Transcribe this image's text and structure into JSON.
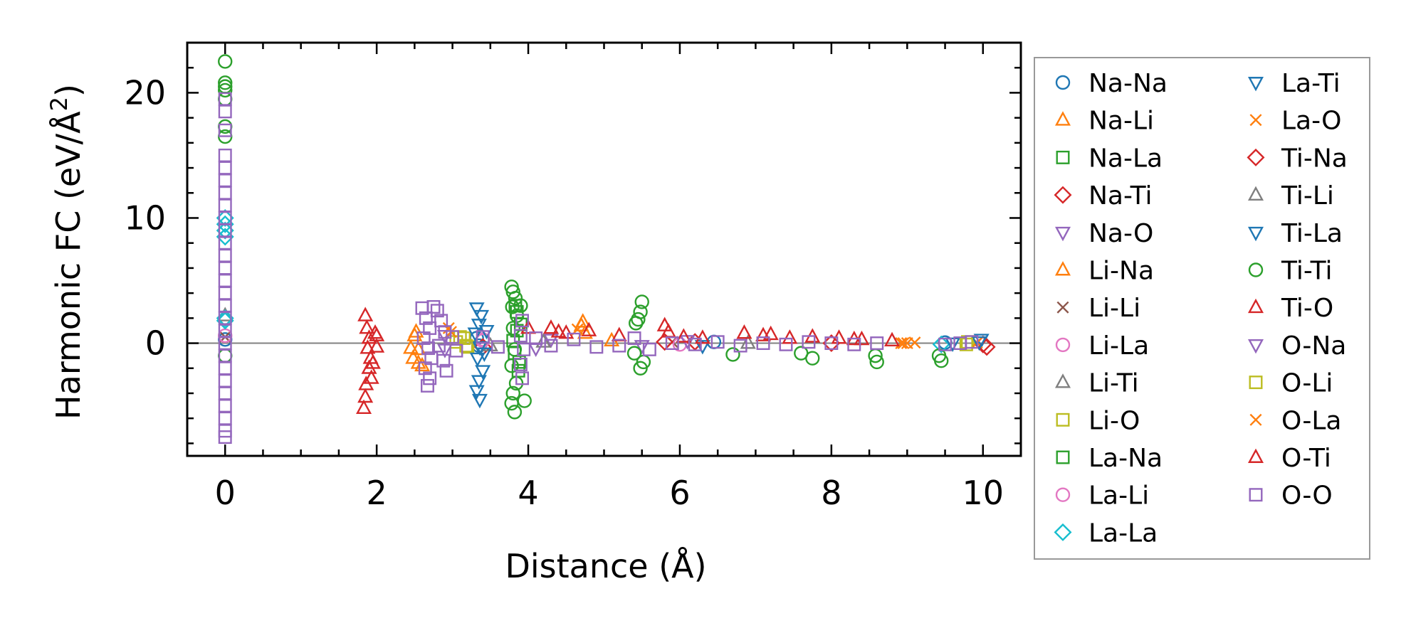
{
  "chart_data": {
    "type": "scatter",
    "title": "",
    "xlabel": "Distance (Å)",
    "ylabel_main": "Harmonic FC (eV/Å",
    "ylabel_sup": "2",
    "ylabel_close": ")",
    "xlim": [
      -0.5,
      10.5
    ],
    "ylim": [
      -9.0,
      24.0
    ],
    "xticks": [
      0,
      2,
      4,
      6,
      8,
      10
    ],
    "xtick_labels": [
      "0",
      "2",
      "4",
      "6",
      "8",
      "10"
    ],
    "yticks": [
      0,
      10,
      20
    ],
    "ytick_labels": [
      "0",
      "10",
      "20"
    ],
    "reference_line_y": 0,
    "legend_position": "outside-right",
    "colors": {
      "blue": "#1f77b4",
      "orange": "#ff7f0e",
      "green": "#2ca02c",
      "red": "#d62728",
      "purple": "#9467bd",
      "brown": "#8c564b",
      "pink": "#e377c2",
      "gray": "#7f7f7f",
      "olive": "#bcbd22",
      "cyan": "#17becf",
      "zero_line": "#808080"
    },
    "series": [
      {
        "name": "Na-Na",
        "marker": "circle",
        "color": "blue",
        "points": [
          [
            0.0,
            0.3
          ],
          [
            3.32,
            0.4
          ],
          [
            3.35,
            -0.2
          ],
          [
            6.45,
            0.1
          ],
          [
            9.5,
            0.05
          ]
        ]
      },
      {
        "name": "Na-Li",
        "marker": "triangle-up",
        "color": "orange",
        "points": [
          [
            2.5,
            0.6
          ],
          [
            2.55,
            -0.5
          ],
          [
            2.6,
            -1.8
          ],
          [
            2.48,
            -1.2
          ],
          [
            2.52,
            0.9
          ],
          [
            5.1,
            0.2
          ]
        ]
      },
      {
        "name": "Na-La",
        "marker": "square",
        "color": "green",
        "points": [
          [
            3.85,
            2.5
          ],
          [
            3.82,
            -0.8
          ],
          [
            3.88,
            -1.5
          ],
          [
            3.9,
            1.5
          ],
          [
            3.8,
            0.2
          ]
        ]
      },
      {
        "name": "Na-Ti",
        "marker": "diamond",
        "color": "red",
        "points": [
          [
            3.4,
            -0.3
          ],
          [
            6.2,
            0.1
          ],
          [
            10.0,
            -0.1
          ]
        ]
      },
      {
        "name": "Na-O",
        "marker": "triangle-down",
        "color": "purple",
        "points": [
          [
            2.9,
            -0.5
          ],
          [
            4.3,
            0.3
          ],
          [
            5.5,
            -0.2
          ]
        ]
      },
      {
        "name": "Li-Na",
        "marker": "triangle-up",
        "color": "orange",
        "points": [
          [
            2.45,
            -0.4
          ],
          [
            2.55,
            -1.6
          ],
          [
            4.7,
            1.4
          ],
          [
            4.75,
            0.8
          ],
          [
            4.72,
            1.7
          ]
        ]
      },
      {
        "name": "Li-Li",
        "marker": "x",
        "color": "brown",
        "points": [
          [
            0.0,
            0.5
          ],
          [
            5.9,
            0.1
          ]
        ]
      },
      {
        "name": "Li-La",
        "marker": "circle",
        "color": "pink",
        "points": [
          [
            0.0,
            0.6
          ],
          [
            3.4,
            0.3
          ]
        ]
      },
      {
        "name": "Li-Ti",
        "marker": "triangle-up",
        "color": "gray",
        "points": [
          [
            0.0,
            2.2
          ],
          [
            3.5,
            -0.2
          ]
        ]
      },
      {
        "name": "Li-O",
        "marker": "square",
        "color": "olive",
        "points": [
          [
            3.05,
            0.1
          ],
          [
            3.2,
            -0.3
          ],
          [
            3.15,
            0.4
          ],
          [
            9.8,
            0.1
          ]
        ]
      },
      {
        "name": "La-Na",
        "marker": "square",
        "color": "green",
        "points": [
          [
            3.87,
            -2.2
          ],
          [
            3.83,
            3.0
          ],
          [
            3.85,
            1.0
          ]
        ]
      },
      {
        "name": "La-Li",
        "marker": "circle",
        "color": "pink",
        "points": [
          [
            3.4,
            0.2
          ],
          [
            6.0,
            -0.1
          ]
        ]
      },
      {
        "name": "La-La",
        "marker": "diamond",
        "color": "cyan",
        "points": [
          [
            0.0,
            10.0
          ],
          [
            0.0,
            9.5
          ],
          [
            0.0,
            9.0
          ],
          [
            0.0,
            8.5
          ],
          [
            0.0,
            2.0
          ],
          [
            0.0,
            1.8
          ],
          [
            9.45,
            -0.1
          ]
        ]
      },
      {
        "name": "La-Ti",
        "marker": "triangle-down",
        "color": "blue",
        "points": [
          [
            3.32,
            2.8
          ],
          [
            3.38,
            2.2
          ],
          [
            3.35,
            1.5
          ],
          [
            3.3,
            0.8
          ],
          [
            3.36,
            -0.3
          ],
          [
            3.33,
            -1.2
          ],
          [
            3.4,
            -2.2
          ],
          [
            3.35,
            -3.0
          ],
          [
            3.32,
            -3.8
          ],
          [
            3.36,
            -4.5
          ],
          [
            6.3,
            -0.2
          ],
          [
            9.98,
            0.3
          ]
        ]
      },
      {
        "name": "La-O",
        "marker": "x",
        "color": "orange",
        "points": [
          [
            2.95,
            1.2
          ],
          [
            8.92,
            0.0
          ],
          [
            9.0,
            0.0
          ],
          [
            9.92,
            0.05
          ]
        ]
      },
      {
        "name": "Ti-Na",
        "marker": "diamond",
        "color": "red",
        "points": [
          [
            5.8,
            0.1
          ],
          [
            8.0,
            0.0
          ],
          [
            10.05,
            -0.3
          ]
        ]
      },
      {
        "name": "Ti-Li",
        "marker": "triangle-up",
        "color": "gray",
        "points": [
          [
            4.2,
            0.1
          ],
          [
            6.9,
            0.0
          ]
        ]
      },
      {
        "name": "Ti-La",
        "marker": "triangle-down",
        "color": "blue",
        "points": [
          [
            3.45,
            1.0
          ],
          [
            3.42,
            -0.8
          ],
          [
            9.6,
            0.0
          ],
          [
            9.95,
            0.1
          ]
        ]
      },
      {
        "name": "Ti-Ti",
        "marker": "circle",
        "color": "green",
        "points": [
          [
            0.0,
            22.5
          ],
          [
            0.0,
            20.8
          ],
          [
            0.0,
            20.5
          ],
          [
            0.0,
            20.2
          ],
          [
            0.0,
            19.5
          ],
          [
            0.0,
            17.3
          ],
          [
            0.0,
            16.5
          ],
          [
            0.0,
            -1.0
          ],
          [
            3.78,
            4.5
          ],
          [
            3.8,
            4.1
          ],
          [
            3.83,
            3.6
          ],
          [
            3.79,
            2.9
          ],
          [
            3.85,
            2.2
          ],
          [
            3.8,
            1.2
          ],
          [
            3.82,
            -0.5
          ],
          [
            3.78,
            -1.8
          ],
          [
            3.84,
            -3.2
          ],
          [
            3.8,
            -4.0
          ],
          [
            3.78,
            -4.8
          ],
          [
            3.82,
            -5.5
          ],
          [
            3.9,
            3.0
          ],
          [
            3.95,
            -4.6
          ],
          [
            5.42,
            1.6
          ],
          [
            5.5,
            3.3
          ],
          [
            5.48,
            2.5
          ],
          [
            5.45,
            1.9
          ],
          [
            5.52,
            -1.5
          ],
          [
            5.48,
            -2.0
          ],
          [
            5.4,
            -0.8
          ],
          [
            6.7,
            -0.9
          ],
          [
            7.75,
            -1.2
          ],
          [
            7.6,
            -0.8
          ],
          [
            8.6,
            -1.5
          ],
          [
            8.58,
            -1.0
          ],
          [
            9.45,
            -1.4
          ],
          [
            9.42,
            -1.0
          ]
        ]
      },
      {
        "name": "Ti-O",
        "marker": "triangle-up",
        "color": "red",
        "points": [
          [
            1.85,
            2.2
          ],
          [
            1.87,
            1.2
          ],
          [
            1.9,
            0.4
          ],
          [
            1.88,
            -0.4
          ],
          [
            1.92,
            -1.2
          ],
          [
            1.9,
            -2.0
          ],
          [
            1.93,
            -2.8
          ],
          [
            1.95,
            -1.6
          ],
          [
            1.98,
            0.8
          ],
          [
            2.0,
            -0.3
          ],
          [
            1.86,
            -3.3
          ],
          [
            1.85,
            -4.3
          ],
          [
            1.83,
            -5.2
          ],
          [
            4.3,
            1.2
          ],
          [
            4.5,
            0.8
          ],
          [
            4.8,
            1.0
          ],
          [
            5.2,
            0.6
          ],
          [
            5.85,
            0.9
          ],
          [
            5.8,
            1.4
          ],
          [
            6.3,
            0.4
          ],
          [
            6.85,
            0.8
          ],
          [
            7.1,
            0.6
          ],
          [
            7.45,
            0.4
          ],
          [
            7.75,
            0.5
          ],
          [
            8.1,
            0.4
          ],
          [
            8.4,
            0.3
          ],
          [
            8.8,
            0.2
          ]
        ]
      },
      {
        "name": "O-Na",
        "marker": "triangle-down",
        "color": "purple",
        "points": [
          [
            2.9,
            0.6
          ],
          [
            4.1,
            -0.4
          ],
          [
            6.1,
            0.2
          ]
        ]
      },
      {
        "name": "O-Li",
        "marker": "square",
        "color": "olive",
        "points": [
          [
            3.1,
            0.5
          ],
          [
            3.18,
            -0.2
          ],
          [
            9.78,
            -0.1
          ]
        ]
      },
      {
        "name": "O-La",
        "marker": "x",
        "color": "orange",
        "points": [
          [
            2.98,
            0.9
          ],
          [
            4.65,
            1.1
          ],
          [
            8.95,
            0.0
          ],
          [
            9.1,
            0.05
          ]
        ]
      },
      {
        "name": "O-Ti",
        "marker": "triangle-up",
        "color": "red",
        "points": [
          [
            2.0,
            0.6
          ],
          [
            4.0,
            1.2
          ],
          [
            4.4,
            0.9
          ],
          [
            6.05,
            0.5
          ],
          [
            7.2,
            0.7
          ],
          [
            8.3,
            0.3
          ]
        ]
      },
      {
        "name": "O-O",
        "marker": "square",
        "color": "purple",
        "points": [
          [
            0.0,
            19.5
          ],
          [
            0.0,
            18.5
          ],
          [
            0.0,
            17.0
          ],
          [
            0.0,
            15.0
          ],
          [
            0.0,
            14.0
          ],
          [
            0.0,
            13.0
          ],
          [
            0.0,
            12.0
          ],
          [
            0.0,
            11.0
          ],
          [
            0.0,
            10.0
          ],
          [
            0.0,
            9.0
          ],
          [
            0.0,
            8.0
          ],
          [
            0.0,
            7.0
          ],
          [
            0.0,
            6.0
          ],
          [
            0.0,
            5.0
          ],
          [
            0.0,
            4.0
          ],
          [
            0.0,
            3.0
          ],
          [
            0.0,
            2.0
          ],
          [
            0.0,
            1.0
          ],
          [
            0.0,
            0.0
          ],
          [
            0.0,
            -1.0
          ],
          [
            0.0,
            -2.0
          ],
          [
            0.0,
            -3.0
          ],
          [
            0.0,
            -4.0
          ],
          [
            0.0,
            -5.0
          ],
          [
            0.0,
            -6.0
          ],
          [
            0.0,
            -7.0
          ],
          [
            0.0,
            -7.5
          ],
          [
            2.6,
            2.8
          ],
          [
            2.65,
            2.0
          ],
          [
            2.7,
            1.2
          ],
          [
            2.62,
            0.4
          ],
          [
            2.68,
            -0.4
          ],
          [
            2.72,
            -1.2
          ],
          [
            2.64,
            -2.0
          ],
          [
            2.7,
            -2.8
          ],
          [
            2.67,
            -3.4
          ],
          [
            2.8,
            2.6
          ],
          [
            2.85,
            1.8
          ],
          [
            2.9,
            0.9
          ],
          [
            2.82,
            -0.2
          ],
          [
            2.88,
            -1.4
          ],
          [
            2.92,
            -2.2
          ],
          [
            2.75,
            2.9
          ],
          [
            3.0,
            0.5
          ],
          [
            3.05,
            -0.6
          ],
          [
            3.4,
            0.5
          ],
          [
            3.6,
            -0.3
          ],
          [
            3.92,
            1.8
          ],
          [
            3.9,
            0.6
          ],
          [
            3.94,
            -0.5
          ],
          [
            3.9,
            -1.7
          ],
          [
            3.92,
            -2.8
          ],
          [
            4.1,
            0.4
          ],
          [
            4.3,
            -0.2
          ],
          [
            4.6,
            0.3
          ],
          [
            4.9,
            -0.3
          ],
          [
            5.2,
            -0.2
          ],
          [
            5.4,
            0.4
          ],
          [
            5.6,
            -0.5
          ],
          [
            5.9,
            0.0
          ],
          [
            6.2,
            -0.1
          ],
          [
            6.5,
            0.1
          ],
          [
            6.8,
            -0.2
          ],
          [
            7.1,
            0.0
          ],
          [
            7.4,
            -0.1
          ],
          [
            7.7,
            0.1
          ],
          [
            8.0,
            0.0
          ],
          [
            8.3,
            -0.1
          ],
          [
            8.6,
            0.0
          ],
          [
            9.5,
            -0.1
          ],
          [
            9.7,
            0.0
          ],
          [
            9.85,
            0.1
          ]
        ]
      }
    ],
    "legend_order": [
      "Na-Na",
      "Na-Li",
      "Na-La",
      "Na-Ti",
      "Na-O",
      "Li-Na",
      "Li-Li",
      "Li-La",
      "Li-Ti",
      "Li-O",
      "La-Na",
      "La-Li",
      "La-La",
      "La-Ti",
      "La-O",
      "Ti-Na",
      "Ti-Li",
      "Ti-La",
      "Ti-Ti",
      "Ti-O",
      "O-Na",
      "O-Li",
      "O-La",
      "O-Ti",
      "O-O"
    ]
  }
}
